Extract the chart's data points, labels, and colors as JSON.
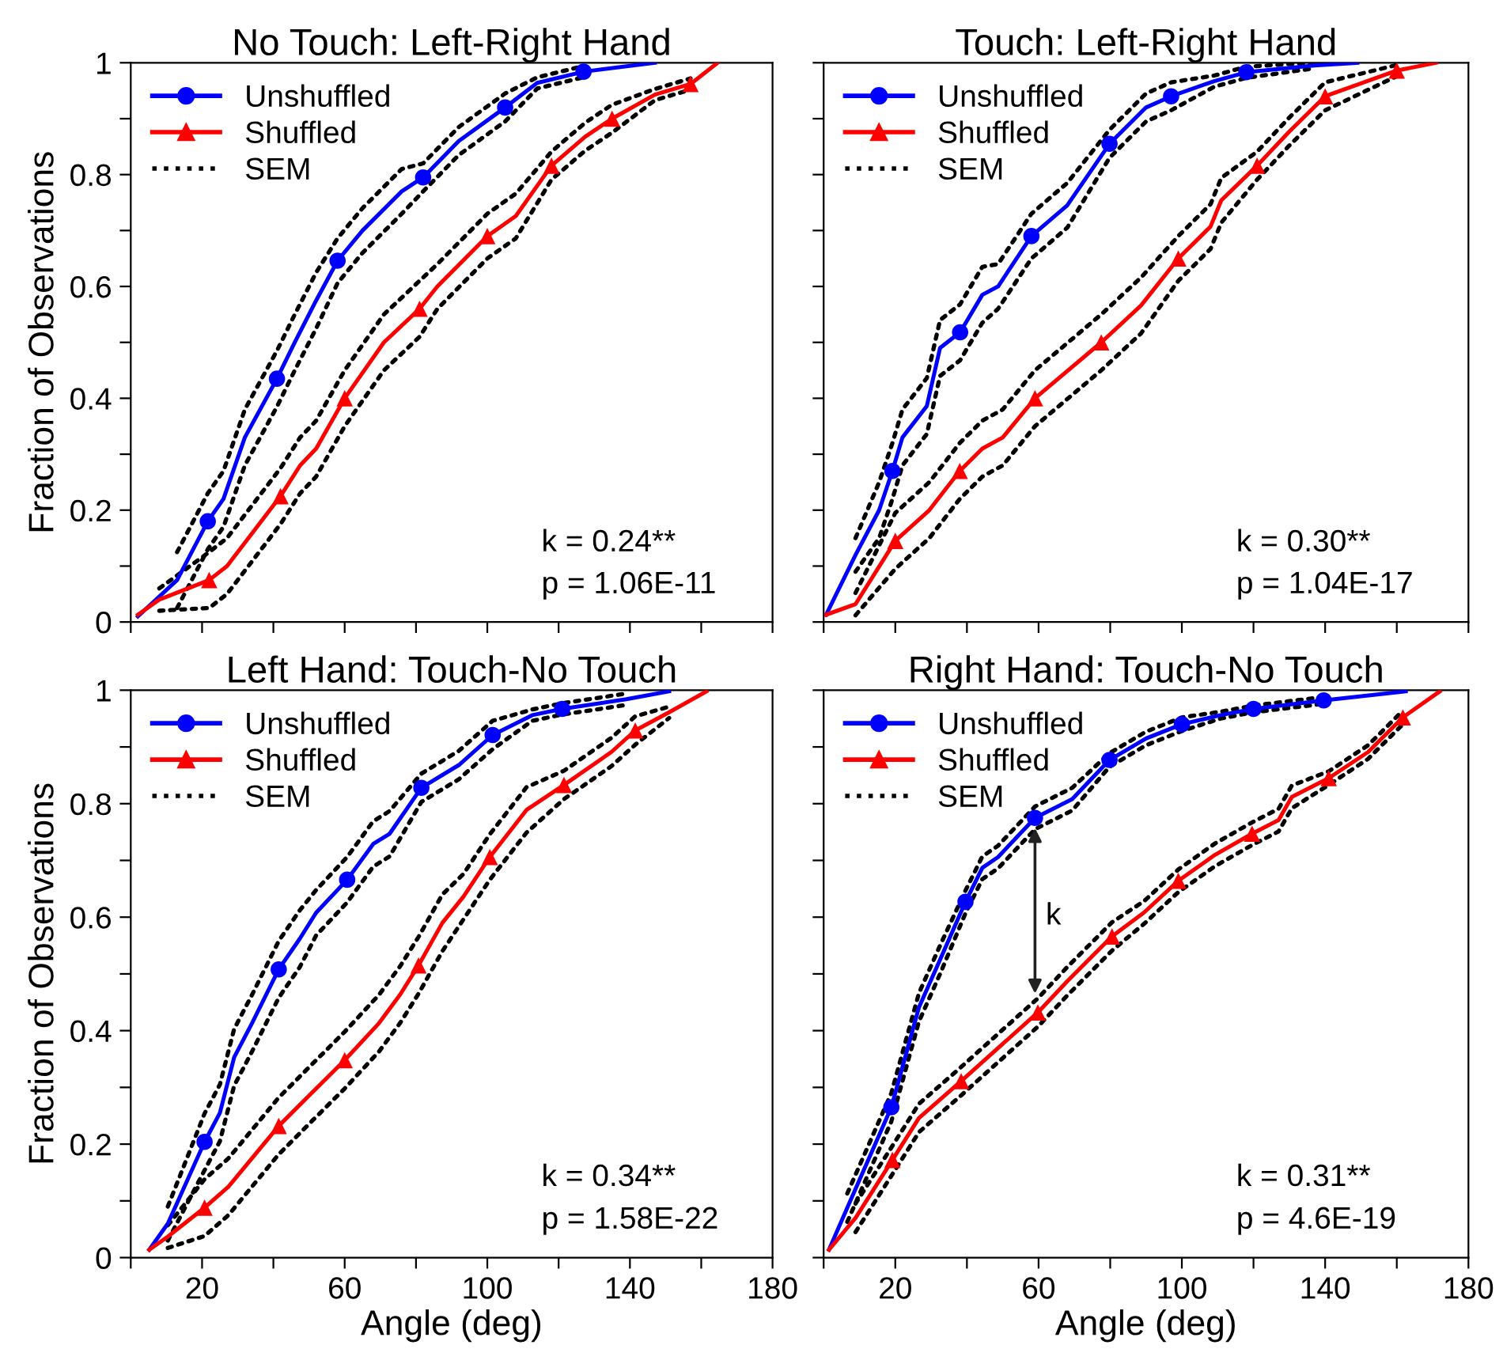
{
  "chart_data": [
    {
      "type": "line",
      "title": "No Touch: Left-Right Hand",
      "ylabel": "Fraction of Observations",
      "xlim": [
        0,
        180
      ],
      "ylim": [
        0,
        1
      ],
      "xticks": [
        {
          "value": 0,
          "label": null
        },
        20,
        {
          "value": 40,
          "label": null
        },
        60,
        {
          "value": 80,
          "label": null
        },
        100,
        {
          "value": 120,
          "label": null
        },
        140,
        {
          "value": 160,
          "label": null
        },
        180
      ],
      "yticks": [
        0,
        {
          "value": 0.1,
          "label": null
        },
        0.2,
        {
          "value": 0.3,
          "label": null
        },
        0.4,
        {
          "value": 0.5,
          "label": null
        },
        0.6,
        {
          "value": 0.7,
          "label": null
        },
        0.8,
        {
          "value": 0.9,
          "label": null
        },
        1
      ],
      "tick_labels": "y",
      "legend": "top left",
      "annotations": [
        "k = 0.24**",
        "p = 1.06E-11"
      ],
      "series": [
        {
          "name": "Unshuffled",
          "color": "#0000ff",
          "x": [
            2,
            13,
            21.6,
            26,
            32,
            41,
            46,
            52,
            58,
            65,
            76,
            82,
            92,
            105,
            114,
            127,
            147
          ],
          "values": [
            0.01,
            0.075,
            0.18,
            0.22,
            0.33,
            0.435,
            0.5,
            0.575,
            0.646,
            0.7,
            0.77,
            0.795,
            0.86,
            0.92,
            0.964,
            0.984,
            1.0
          ]
        },
        {
          "type": "scatter",
          "marker": "circle",
          "color": "#0000ff",
          "x": [
            21.6,
            41,
            58,
            82,
            105,
            127
          ],
          "values": [
            0.18,
            0.435,
            0.646,
            0.795,
            0.92,
            0.984
          ]
        },
        {
          "name": "Shuffled",
          "color": "#ff0000",
          "x": [
            2,
            8,
            22,
            27,
            42,
            47.5,
            52,
            60,
            71,
            81,
            86,
            100,
            108,
            118,
            127.5,
            135,
            147,
            157,
            164.6
          ],
          "values": [
            0.013,
            0.04,
            0.075,
            0.1,
            0.225,
            0.28,
            0.31,
            0.4,
            0.5,
            0.56,
            0.6,
            0.69,
            0.726,
            0.816,
            0.868,
            0.9,
            0.943,
            0.962,
            1.0
          ]
        },
        {
          "type": "scatter",
          "marker": "triangle",
          "color": "#ff0000",
          "x": [
            22,
            42,
            60,
            81,
            100,
            118,
            135,
            157
          ],
          "values": [
            0.075,
            0.225,
            0.4,
            0.56,
            0.69,
            0.816,
            0.9,
            0.962
          ]
        },
        {
          "name": "SEM",
          "line_style": "dotted",
          "color": "#000000",
          "x": [
            13,
            21.6,
            26,
            32,
            41,
            46,
            52,
            58,
            65,
            76,
            82,
            92,
            105,
            114,
            127
          ],
          "values": [
            0.125,
            0.23,
            0.27,
            0.38,
            0.485,
            0.55,
            0.625,
            0.686,
            0.74,
            0.81,
            0.82,
            0.885,
            0.945,
            0.974,
            0.994
          ]
        },
        {
          "line_style": "dotted",
          "color": "#000000",
          "x": [
            13,
            21.6,
            26,
            32,
            41,
            46,
            52,
            58,
            65,
            76,
            82,
            92,
            105,
            114,
            127
          ],
          "values": [
            0.025,
            0.13,
            0.17,
            0.28,
            0.385,
            0.45,
            0.525,
            0.606,
            0.66,
            0.73,
            0.77,
            0.835,
            0.895,
            0.954,
            0.974
          ]
        },
        {
          "line_style": "dotted",
          "color": "#000000",
          "x": [
            8,
            22,
            27,
            42,
            47.5,
            52,
            60,
            71,
            81,
            86,
            100,
            108,
            118,
            127.5,
            135,
            147,
            157
          ],
          "values": [
            0.06,
            0.125,
            0.15,
            0.275,
            0.33,
            0.36,
            0.45,
            0.55,
            0.61,
            0.64,
            0.73,
            0.766,
            0.841,
            0.893,
            0.925,
            0.953,
            0.972
          ]
        },
        {
          "line_style": "dotted",
          "color": "#000000",
          "x": [
            8,
            22,
            27,
            42,
            47.5,
            52,
            60,
            71,
            81,
            86,
            100,
            108,
            118,
            127.5,
            135,
            147,
            157
          ],
          "values": [
            0.02,
            0.025,
            0.05,
            0.175,
            0.23,
            0.26,
            0.35,
            0.45,
            0.51,
            0.56,
            0.65,
            0.686,
            0.791,
            0.843,
            0.875,
            0.933,
            0.952
          ]
        }
      ]
    },
    {
      "type": "line",
      "title": "Touch: Left-Right Hand",
      "xlim": [
        0,
        180
      ],
      "ylim": [
        0,
        1
      ],
      "xticks": [
        {
          "value": 0,
          "label": null
        },
        20,
        {
          "value": 40,
          "label": null
        },
        60,
        {
          "value": 80,
          "label": null
        },
        100,
        {
          "value": 120,
          "label": null
        },
        140,
        {
          "value": 160,
          "label": null
        },
        180
      ],
      "yticks": [
        0,
        {
          "value": 0.1,
          "label": null
        },
        0.2,
        {
          "value": 0.3,
          "label": null
        },
        0.4,
        {
          "value": 0.5,
          "label": null
        },
        0.6,
        {
          "value": 0.7,
          "label": null
        },
        0.8,
        {
          "value": 0.9,
          "label": null
        },
        1
      ],
      "tick_labels": false,
      "legend": "top left",
      "annotations": [
        "k = 0.30**",
        "p = 1.04E-17"
      ],
      "series": [
        {
          "name": "Unshuffled",
          "color": "#0000ff",
          "x": [
            0.7,
            8.9,
            15.5,
            19.2,
            22,
            28.8,
            32.5,
            38.1,
            44.3,
            48.7,
            58,
            68,
            79.8,
            90,
            97,
            109,
            118,
            137,
            149
          ],
          "values": [
            0.013,
            0.12,
            0.2,
            0.27,
            0.33,
            0.386,
            0.49,
            0.518,
            0.585,
            0.6,
            0.69,
            0.745,
            0.855,
            0.92,
            0.94,
            0.967,
            0.983,
            0.995,
            1.0
          ]
        },
        {
          "type": "scatter",
          "marker": "circle",
          "color": "#0000ff",
          "x": [
            19.2,
            38.1,
            58,
            79.8,
            97,
            118
          ],
          "values": [
            0.27,
            0.518,
            0.69,
            0.855,
            0.94,
            0.983
          ]
        },
        {
          "name": "Shuffled",
          "color": "#ff0000",
          "x": [
            0.7,
            8.9,
            20,
            29.5,
            38,
            44.3,
            50,
            59,
            77.5,
            88.6,
            99,
            108,
            111,
            121,
            130,
            140,
            160,
            171
          ],
          "values": [
            0.013,
            0.032,
            0.145,
            0.2,
            0.27,
            0.31,
            0.33,
            0.4,
            0.5,
            0.566,
            0.65,
            0.707,
            0.754,
            0.816,
            0.877,
            0.94,
            0.986,
            1.0
          ]
        },
        {
          "type": "scatter",
          "marker": "triangle",
          "color": "#ff0000",
          "x": [
            20,
            38,
            59,
            77.5,
            99,
            121,
            140,
            160
          ],
          "values": [
            0.145,
            0.27,
            0.4,
            0.5,
            0.65,
            0.816,
            0.94,
            0.986
          ]
        },
        {
          "name": "SEM",
          "line_style": "dotted",
          "color": "#000000",
          "x": [
            8.9,
            15.5,
            19.2,
            22,
            28.8,
            32.5,
            38.1,
            44.3,
            48.7,
            58,
            68,
            79.8,
            90,
            97,
            109,
            118,
            137
          ],
          "values": [
            0.15,
            0.25,
            0.32,
            0.38,
            0.436,
            0.54,
            0.568,
            0.635,
            0.64,
            0.73,
            0.785,
            0.88,
            0.945,
            0.965,
            0.977,
            0.993,
            1.0
          ]
        },
        {
          "line_style": "dotted",
          "color": "#000000",
          "x": [
            8.9,
            15.5,
            19.2,
            22,
            28.8,
            32.5,
            38.1,
            44.3,
            48.7,
            58,
            68,
            79.8,
            90,
            97,
            109,
            118,
            137
          ],
          "values": [
            0.09,
            0.15,
            0.22,
            0.28,
            0.336,
            0.44,
            0.468,
            0.535,
            0.56,
            0.65,
            0.705,
            0.83,
            0.895,
            0.915,
            0.957,
            0.973,
            0.99
          ]
        },
        {
          "line_style": "dotted",
          "color": "#000000",
          "x": [
            8.9,
            20,
            29.5,
            38,
            44.3,
            50,
            59,
            77.5,
            88.6,
            99,
            108,
            111,
            121,
            130,
            140,
            160
          ],
          "values": [
            0.052,
            0.195,
            0.25,
            0.32,
            0.36,
            0.38,
            0.45,
            0.55,
            0.616,
            0.69,
            0.747,
            0.794,
            0.841,
            0.902,
            0.965,
            0.996
          ]
        },
        {
          "line_style": "dotted",
          "color": "#000000",
          "x": [
            8.9,
            20,
            29.5,
            38,
            44.3,
            50,
            59,
            77.5,
            88.6,
            99,
            108,
            111,
            121,
            130,
            140,
            160
          ],
          "values": [
            0.012,
            0.095,
            0.15,
            0.22,
            0.26,
            0.28,
            0.35,
            0.45,
            0.516,
            0.61,
            0.667,
            0.714,
            0.791,
            0.852,
            0.915,
            0.976
          ]
        }
      ]
    },
    {
      "type": "line",
      "title": "Left Hand: Touch-No Touch",
      "xlabel": "Angle (deg)",
      "ylabel": "Fraction of Observations",
      "xlim": [
        0,
        180
      ],
      "ylim": [
        0,
        1
      ],
      "xticks": [
        {
          "value": 0,
          "label": null
        },
        20,
        {
          "value": 40,
          "label": null
        },
        60,
        {
          "value": 80,
          "label": null
        },
        100,
        {
          "value": 120,
          "label": null
        },
        140,
        {
          "value": 160,
          "label": null
        },
        180
      ],
      "yticks": [
        0,
        {
          "value": 0.1,
          "label": null
        },
        0.2,
        {
          "value": 0.3,
          "label": null
        },
        0.4,
        {
          "value": 0.5,
          "label": null
        },
        0.6,
        {
          "value": 0.7,
          "label": null
        },
        0.8,
        {
          "value": 0.9,
          "label": null
        },
        1
      ],
      "legend": "top left",
      "annotations": [
        "k = 0.34**",
        "p = 1.58E-22"
      ],
      "series": [
        {
          "name": "Unshuffled",
          "color": "#0000ff",
          "x": [
            5.2,
            10.4,
            20.7,
            25,
            29,
            34,
            41.5,
            47.4,
            52,
            60.7,
            68,
            72.6,
            81.5,
            92,
            101.5,
            112.6,
            121,
            139,
            151
          ],
          "values": [
            0.014,
            0.06,
            0.204,
            0.255,
            0.353,
            0.413,
            0.508,
            0.562,
            0.608,
            0.666,
            0.729,
            0.747,
            0.828,
            0.868,
            0.921,
            0.956,
            0.967,
            0.984,
            0.998
          ]
        },
        {
          "type": "scatter",
          "marker": "circle",
          "color": "#0000ff",
          "x": [
            20.7,
            41.5,
            60.7,
            81.5,
            101.5,
            121
          ],
          "values": [
            0.204,
            0.508,
            0.666,
            0.828,
            0.921,
            0.967
          ]
        },
        {
          "name": "Shuffled",
          "color": "#ff0000",
          "x": [
            5.2,
            10.4,
            20.7,
            27.4,
            41.5,
            50.4,
            60,
            69.6,
            75.6,
            80.7,
            87.4,
            93.3,
            100.7,
            111,
            121.5,
            134.8,
            141.5,
            151,
            161.5
          ],
          "values": [
            0.014,
            0.037,
            0.088,
            0.125,
            0.232,
            0.288,
            0.348,
            0.413,
            0.464,
            0.515,
            0.59,
            0.636,
            0.706,
            0.789,
            0.833,
            0.891,
            0.929,
            0.961,
            0.998
          ]
        },
        {
          "type": "scatter",
          "marker": "triangle",
          "color": "#ff0000",
          "x": [
            20.7,
            41.5,
            60,
            80.7,
            100.7,
            121.5,
            141.5
          ],
          "values": [
            0.088,
            0.232,
            0.348,
            0.515,
            0.706,
            0.833,
            0.929
          ]
        },
        {
          "name": "SEM",
          "line_style": "dotted",
          "color": "#000000",
          "x": [
            10.4,
            20.7,
            25,
            29,
            34,
            41.5,
            47.4,
            52,
            60.7,
            68,
            72.6,
            81.5,
            92,
            101.5,
            112.6,
            121,
            139
          ],
          "values": [
            0.09,
            0.254,
            0.305,
            0.403,
            0.463,
            0.558,
            0.612,
            0.648,
            0.706,
            0.769,
            0.787,
            0.853,
            0.893,
            0.946,
            0.966,
            0.977,
            0.994
          ]
        },
        {
          "line_style": "dotted",
          "color": "#000000",
          "x": [
            10.4,
            20.7,
            25,
            29,
            34,
            41.5,
            47.4,
            52,
            60.7,
            68,
            72.6,
            81.5,
            92,
            101.5,
            112.6,
            121,
            139
          ],
          "values": [
            0.03,
            0.154,
            0.205,
            0.303,
            0.363,
            0.458,
            0.512,
            0.568,
            0.626,
            0.689,
            0.707,
            0.803,
            0.843,
            0.896,
            0.946,
            0.957,
            0.974
          ]
        },
        {
          "line_style": "dotted",
          "color": "#000000",
          "x": [
            10.4,
            20.7,
            27.4,
            41.5,
            50.4,
            60,
            69.6,
            75.6,
            80.7,
            87.4,
            93.3,
            100.7,
            111,
            121.5,
            134.8,
            141.5,
            151
          ],
          "values": [
            0.057,
            0.138,
            0.175,
            0.282,
            0.338,
            0.398,
            0.463,
            0.514,
            0.565,
            0.64,
            0.676,
            0.746,
            0.829,
            0.858,
            0.916,
            0.954,
            0.971
          ]
        },
        {
          "line_style": "dotted",
          "color": "#000000",
          "x": [
            10.4,
            20.7,
            27.4,
            41.5,
            50.4,
            60,
            69.6,
            75.6,
            80.7,
            87.4,
            93.3,
            100.7,
            111,
            121.5,
            134.8,
            141.5,
            151
          ],
          "values": [
            0.017,
            0.038,
            0.075,
            0.182,
            0.238,
            0.298,
            0.363,
            0.414,
            0.465,
            0.54,
            0.596,
            0.666,
            0.749,
            0.808,
            0.866,
            0.904,
            0.951
          ]
        }
      ]
    },
    {
      "type": "line",
      "title": "Right Hand: Touch-No Touch",
      "xlabel": "Angle (deg)",
      "xlim": [
        0,
        180
      ],
      "ylim": [
        0,
        1
      ],
      "xticks": [
        {
          "value": 0,
          "label": null
        },
        20,
        {
          "value": 40,
          "label": null
        },
        60,
        {
          "value": 80,
          "label": null
        },
        100,
        {
          "value": 120,
          "label": null
        },
        140,
        {
          "value": 160,
          "label": null
        },
        180
      ],
      "yticks": [
        0,
        {
          "value": 0.1,
          "label": null
        },
        0.2,
        {
          "value": 0.3,
          "label": null
        },
        0.4,
        {
          "value": 0.5,
          "label": null
        },
        0.6,
        {
          "value": 0.7,
          "label": null
        },
        0.8,
        {
          "value": 0.9,
          "label": null
        },
        1
      ],
      "tick_labels": "x",
      "legend": "top left",
      "annotations": [
        "k = 0.31**",
        "p = 4.6E-19",
        "k"
      ],
      "series": [
        {
          "name": "Unshuffled",
          "color": "#0000ff",
          "x": [
            1.5,
            6.6,
            18.9,
            26.6,
            32.5,
            39.6,
            44.3,
            48.7,
            59,
            69.4,
            79.8,
            90,
            100,
            110.8,
            120,
            139.6,
            162.5
          ],
          "values": [
            0.014,
            0.088,
            0.265,
            0.441,
            0.525,
            0.627,
            0.687,
            0.706,
            0.775,
            0.808,
            0.877,
            0.915,
            0.94,
            0.956,
            0.967,
            0.982,
            0.998
          ]
        },
        {
          "type": "scatter",
          "marker": "circle",
          "color": "#0000ff",
          "x": [
            18.9,
            39.6,
            59,
            79.8,
            100,
            120,
            139.6
          ],
          "values": [
            0.265,
            0.627,
            0.775,
            0.877,
            0.94,
            0.967,
            0.982
          ]
        },
        {
          "name": "Shuffled",
          "color": "#ff0000",
          "x": [
            1.5,
            8.9,
            19.2,
            26.6,
            38.4,
            45.8,
            59.8,
            68,
            80.5,
            89.4,
            99,
            109.3,
            119.6,
            127,
            130.7,
            141,
            152,
            161.7,
            172
          ],
          "values": [
            0.014,
            0.07,
            0.172,
            0.246,
            0.311,
            0.353,
            0.432,
            0.487,
            0.566,
            0.608,
            0.664,
            0.71,
            0.747,
            0.771,
            0.812,
            0.845,
            0.891,
            0.952,
            0.998
          ]
        },
        {
          "type": "scatter",
          "marker": "triangle",
          "color": "#ff0000",
          "x": [
            19.2,
            38.4,
            59.8,
            80.5,
            99,
            119.6,
            141,
            161.7
          ],
          "values": [
            0.172,
            0.311,
            0.432,
            0.566,
            0.664,
            0.747,
            0.845,
            0.952
          ]
        },
        {
          "name": "SEM",
          "line_style": "dotted",
          "color": "#000000",
          "x": [
            6.6,
            18.9,
            26.6,
            32.5,
            39.6,
            44.3,
            48.7,
            59,
            69.4,
            79.8,
            90,
            100,
            110.8,
            120,
            139.6
          ],
          "values": [
            0.113,
            0.29,
            0.466,
            0.55,
            0.647,
            0.707,
            0.726,
            0.795,
            0.828,
            0.889,
            0.927,
            0.952,
            0.962,
            0.973,
            0.988
          ]
        },
        {
          "line_style": "dotted",
          "color": "#000000",
          "x": [
            6.6,
            18.9,
            26.6,
            32.5,
            39.6,
            44.3,
            48.7,
            59,
            69.4,
            79.8,
            90,
            100,
            110.8,
            120,
            139.6
          ],
          "values": [
            0.063,
            0.24,
            0.416,
            0.5,
            0.607,
            0.667,
            0.686,
            0.755,
            0.788,
            0.865,
            0.903,
            0.928,
            0.95,
            0.961,
            0.976
          ]
        },
        {
          "line_style": "dotted",
          "color": "#000000",
          "x": [
            8.9,
            19.2,
            26.6,
            38.4,
            45.8,
            59.8,
            68,
            80.5,
            89.4,
            99,
            109.3,
            119.6,
            127,
            130.7,
            141,
            152,
            161.7
          ],
          "values": [
            0.095,
            0.197,
            0.271,
            0.336,
            0.378,
            0.457,
            0.512,
            0.591,
            0.628,
            0.684,
            0.73,
            0.767,
            0.791,
            0.832,
            0.857,
            0.903,
            0.964
          ]
        },
        {
          "line_style": "dotted",
          "color": "#000000",
          "x": [
            8.9,
            19.2,
            26.6,
            38.4,
            45.8,
            59.8,
            68,
            80.5,
            89.4,
            99,
            109.3,
            119.6,
            127,
            130.7,
            141,
            152,
            161.7
          ],
          "values": [
            0.045,
            0.147,
            0.221,
            0.286,
            0.328,
            0.407,
            0.462,
            0.541,
            0.588,
            0.644,
            0.69,
            0.727,
            0.751,
            0.792,
            0.833,
            0.879,
            0.94
          ]
        }
      ]
    }
  ]
}
